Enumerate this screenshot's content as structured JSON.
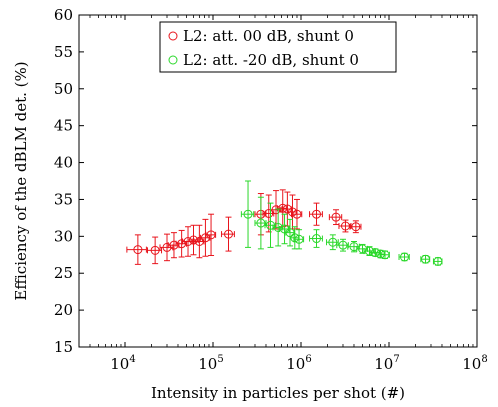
{
  "chart_data": {
    "type": "scatter",
    "xlabel": "Intensity in particles per shot (#)",
    "ylabel": "Efficiency of the dBLM det.  (%)",
    "xscale": "log",
    "xlim": [
      3000,
      100000000
    ],
    "ylim": [
      15,
      60
    ],
    "xtick_values": [
      10000,
      100000,
      1000000,
      10000000,
      100000000
    ],
    "xtick_labels": [
      "10",
      "10",
      "10",
      "10",
      "10"
    ],
    "xtick_exponents": [
      "4",
      "5",
      "6",
      "7",
      "8"
    ],
    "ytick_values": [
      15,
      20,
      25,
      30,
      35,
      40,
      45,
      50,
      55,
      60
    ],
    "ytick_labels": [
      "15",
      "20",
      "25",
      "30",
      "35",
      "40",
      "45",
      "50",
      "55",
      "60"
    ],
    "legend_position": "top-center",
    "grid": false,
    "series": [
      {
        "name": "L2: att. 00 dB, shunt 0",
        "color": "#e8141c",
        "marker": "circle",
        "points": [
          {
            "x": 14000,
            "y": 28.2,
            "xerr": 3500,
            "yerr": 2.0
          },
          {
            "x": 22000,
            "y": 28.1,
            "xerr": 4000,
            "yerr": 1.8
          },
          {
            "x": 30000,
            "y": 28.5,
            "xerr": 5000,
            "yerr": 1.8
          },
          {
            "x": 36000,
            "y": 28.8,
            "xerr": 5000,
            "yerr": 1.7
          },
          {
            "x": 44000,
            "y": 29.0,
            "xerr": 6000,
            "yerr": 1.8
          },
          {
            "x": 52000,
            "y": 29.3,
            "xerr": 7000,
            "yerr": 2.0
          },
          {
            "x": 60000,
            "y": 29.5,
            "xerr": 8000,
            "yerr": 2.0
          },
          {
            "x": 70000,
            "y": 29.3,
            "xerr": 9000,
            "yerr": 2.2
          },
          {
            "x": 82000,
            "y": 29.8,
            "xerr": 10000,
            "yerr": 2.5
          },
          {
            "x": 95000,
            "y": 30.2,
            "xerr": 12000,
            "yerr": 2.8
          },
          {
            "x": 150000,
            "y": 30.3,
            "xerr": 25000,
            "yerr": 2.3
          },
          {
            "x": 350000,
            "y": 33.0,
            "xerr": 50000,
            "yerr": 2.8
          },
          {
            "x": 430000,
            "y": 33.1,
            "xerr": 60000,
            "yerr": 2.5
          },
          {
            "x": 520000,
            "y": 33.6,
            "xerr": 70000,
            "yerr": 2.6
          },
          {
            "x": 620000,
            "y": 33.8,
            "xerr": 80000,
            "yerr": 2.5
          },
          {
            "x": 700000,
            "y": 33.7,
            "xerr": 90000,
            "yerr": 2.3
          },
          {
            "x": 800000,
            "y": 33.3,
            "xerr": 100000,
            "yerr": 2.3
          },
          {
            "x": 900000,
            "y": 33.0,
            "xerr": 120000,
            "yerr": 2.0
          },
          {
            "x": 1500000,
            "y": 33.0,
            "xerr": 250000,
            "yerr": 1.5
          },
          {
            "x": 2500000,
            "y": 32.6,
            "xerr": 400000,
            "yerr": 1.0
          },
          {
            "x": 3200000,
            "y": 31.4,
            "xerr": 500000,
            "yerr": 0.8
          },
          {
            "x": 4200000,
            "y": 31.3,
            "xerr": 600000,
            "yerr": 0.8
          }
        ]
      },
      {
        "name": "L2: att. -20 dB, shunt 0",
        "color": "#2ad82a",
        "marker": "circle",
        "points": [
          {
            "x": 250000,
            "y": 33.0,
            "xerr": 40000,
            "yerr": 4.5
          },
          {
            "x": 350000,
            "y": 31.8,
            "xerr": 50000,
            "yerr": 3.5
          },
          {
            "x": 450000,
            "y": 31.5,
            "xerr": 60000,
            "yerr": 3.0
          },
          {
            "x": 550000,
            "y": 31.2,
            "xerr": 70000,
            "yerr": 2.5
          },
          {
            "x": 650000,
            "y": 31.0,
            "xerr": 80000,
            "yerr": 2.0
          },
          {
            "x": 750000,
            "y": 30.5,
            "xerr": 90000,
            "yerr": 1.8
          },
          {
            "x": 850000,
            "y": 29.8,
            "xerr": 100000,
            "yerr": 1.5
          },
          {
            "x": 950000,
            "y": 29.6,
            "xerr": 120000,
            "yerr": 1.3
          },
          {
            "x": 1500000,
            "y": 29.7,
            "xerr": 250000,
            "yerr": 1.2
          },
          {
            "x": 2300000,
            "y": 29.2,
            "xerr": 350000,
            "yerr": 1.0
          },
          {
            "x": 3000000,
            "y": 28.8,
            "xerr": 450000,
            "yerr": 0.8
          },
          {
            "x": 4000000,
            "y": 28.6,
            "xerr": 600000,
            "yerr": 0.7
          },
          {
            "x": 5000000,
            "y": 28.3,
            "xerr": 700000,
            "yerr": 0.6
          },
          {
            "x": 6000000,
            "y": 28.0,
            "xerr": 800000,
            "yerr": 0.6
          },
          {
            "x": 7000000,
            "y": 27.8,
            "xerr": 900000,
            "yerr": 0.5
          },
          {
            "x": 8000000,
            "y": 27.6,
            "xerr": 1000000,
            "yerr": 0.5
          },
          {
            "x": 9000000,
            "y": 27.5,
            "xerr": 1100000,
            "yerr": 0.5
          },
          {
            "x": 15000000,
            "y": 27.2,
            "xerr": 2000000,
            "yerr": 0.5
          },
          {
            "x": 26000000,
            "y": 26.9,
            "xerr": 3000000,
            "yerr": 0.5
          },
          {
            "x": 36000000,
            "y": 26.6,
            "xerr": 4000000,
            "yerr": 0.5
          }
        ]
      }
    ]
  }
}
